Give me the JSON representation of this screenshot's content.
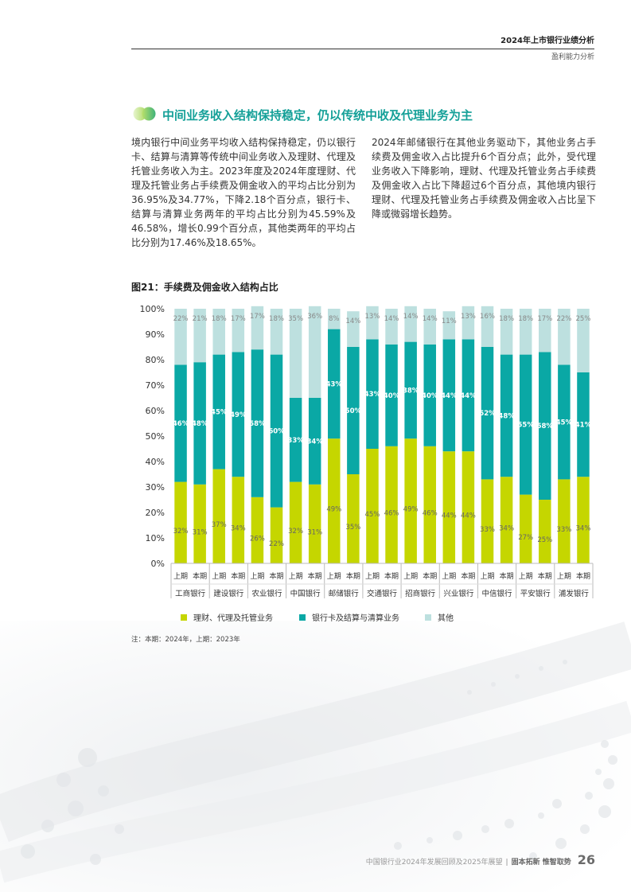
{
  "header": {
    "title": "2024年上市银行业绩分析",
    "subtitle": "盈利能力分析"
  },
  "section": {
    "title": "中间业务收入结构保持稳定，仍以传统中收及代理业务为主",
    "para_left": "境内银行中间业务平均收入结构保持稳定，仍以银行卡、结算与清算等传统中间业务收入及理财、代理及托管业务收入为主。2023年度及2024年度理财、代理及托管业务占手续费及佣金收入的平均占比分别为36.95%及34.77%，下降2.18个百分点，银行卡、结算与清算业务两年的平均占比分别为45.59%及46.58%，增长0.99个百分点，其他类两年的平均占比分别为17.46%及18.65%。",
    "para_right": "2024年邮储银行在其他业务驱动下，其他业务占手续费及佣金收入占比提升6个百分点；此外，受代理业务收入下降影响，理财、代理及托管业务占手续费及佣金收入占比下降超过6个百分点，其他境内银行理财、代理及托管业务占手续费及佣金收入占比呈下降或微弱增长趋势。"
  },
  "figure": {
    "title": "图21：手续费及佣金收入结构占比",
    "note": "注：本期：2024年，上期：2023年"
  },
  "colors": {
    "wealth": "#c5d600",
    "card": "#0aa8a5",
    "other": "#bde0df",
    "accent": "#14a098"
  },
  "chart_data": {
    "type": "bar",
    "stacked": true,
    "ylim": [
      0,
      100
    ],
    "y_ticks": [
      "0%",
      "10%",
      "20%",
      "30%",
      "40%",
      "50%",
      "60%",
      "70%",
      "80%",
      "90%",
      "100%"
    ],
    "period_labels": [
      "上期",
      "本期"
    ],
    "banks": [
      "工商银行",
      "建设银行",
      "农业银行",
      "中国银行",
      "邮储银行",
      "交通银行",
      "招商银行",
      "兴业银行",
      "中信银行",
      "平安银行",
      "浦发银行"
    ],
    "categories": [
      "工商银行 上期",
      "工商银行 本期",
      "建设银行 上期",
      "建设银行 本期",
      "农业银行 上期",
      "农业银行 本期",
      "中国银行 上期",
      "中国银行 本期",
      "邮储银行 上期",
      "邮储银行 本期",
      "交通银行 上期",
      "交通银行 本期",
      "招商银行 上期",
      "招商银行 本期",
      "兴业银行 上期",
      "兴业银行 本期",
      "中信银行 上期",
      "中信银行 本期",
      "平安银行 上期",
      "平安银行 本期",
      "浦发银行 上期",
      "浦发银行 本期"
    ],
    "series": [
      {
        "name": "理财、代理及托管业务",
        "color": "#c5d600",
        "values": [
          32,
          31,
          37,
          34,
          26,
          22,
          32,
          31,
          49,
          35,
          45,
          46,
          49,
          46,
          44,
          44,
          33,
          34,
          27,
          25,
          33,
          34
        ]
      },
      {
        "name": "银行卡及结算与清算业务",
        "color": "#0aa8a5",
        "values": [
          46,
          48,
          45,
          49,
          58,
          60,
          33,
          34,
          43,
          50,
          43,
          40,
          38,
          40,
          44,
          44,
          52,
          48,
          55,
          58,
          45,
          41
        ]
      },
      {
        "name": "其他",
        "color": "#bde0df",
        "values": [
          22,
          21,
          18,
          17,
          17,
          18,
          35,
          36,
          8,
          14,
          13,
          14,
          14,
          14,
          11,
          13,
          16,
          18,
          18,
          17,
          22,
          25
        ]
      }
    ]
  },
  "footer": {
    "report": "中国银行业2024年发展回顾及2025年展望",
    "separator": "|",
    "slogan": "固本拓新 惟智取势",
    "page": "26"
  }
}
